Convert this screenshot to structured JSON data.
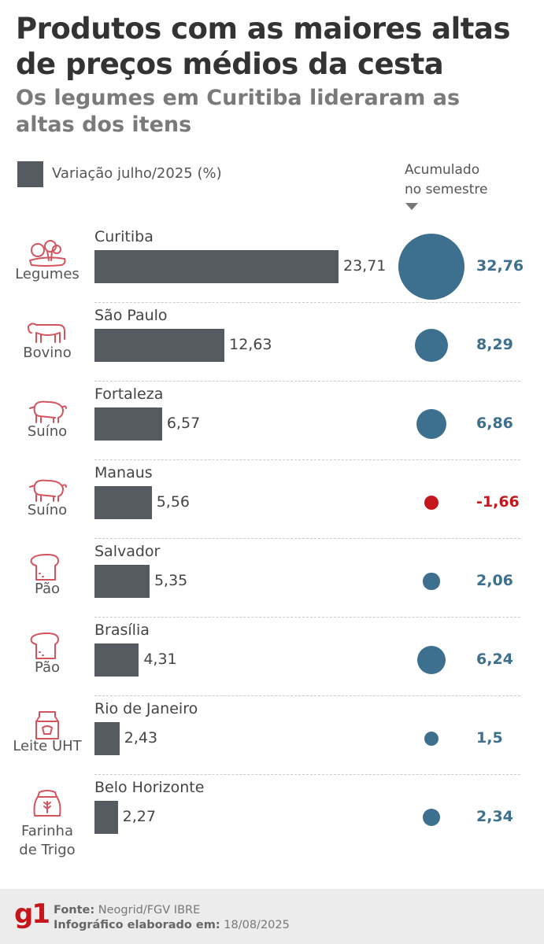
{
  "chart_data": {
    "type": "bar",
    "title": "Produtos com as maiores altas de preços médios da cesta",
    "subtitle": "Os legumes em Curitiba lideraram as altas dos itens",
    "legend": "Variação julho/2025 (%)",
    "accum_label": "Acumulado no semestre",
    "accum_label_lines": [
      "Acumulado",
      "no semestre"
    ],
    "rows": [
      {
        "category": "Legumes",
        "category_lines": [
          "Legumes"
        ],
        "icon": "vegetables-icon",
        "city": "Curitiba",
        "month": "23,71",
        "month_value": 23.71,
        "accum": "32,76",
        "accum_value": 32.76
      },
      {
        "category": "Bovino",
        "category_lines": [
          "Bovino"
        ],
        "icon": "cow-icon",
        "city": "São Paulo",
        "month": "12,63",
        "month_value": 12.63,
        "accum": "8,29",
        "accum_value": 8.29
      },
      {
        "category": "Suíno",
        "category_lines": [
          "Suíno"
        ],
        "icon": "pig-icon",
        "city": "Fortaleza",
        "month": "6,57",
        "month_value": 6.57,
        "accum": "6,86",
        "accum_value": 6.86
      },
      {
        "category": "Suíno",
        "category_lines": [
          "Suíno"
        ],
        "icon": "pig-icon",
        "city": "Manaus",
        "month": "5,56",
        "month_value": 5.56,
        "accum": "-1,66",
        "accum_value": -1.66
      },
      {
        "category": "Pão",
        "category_lines": [
          "Pão"
        ],
        "icon": "bread-icon",
        "city": "Salvador",
        "month": "5,35",
        "month_value": 5.35,
        "accum": "2,06",
        "accum_value": 2.06
      },
      {
        "category": "Pão",
        "category_lines": [
          "Pão"
        ],
        "icon": "bread-icon",
        "city": "Brasília",
        "month": "4,31",
        "month_value": 4.31,
        "accum": "6,24",
        "accum_value": 6.24
      },
      {
        "category": "Leite UHT",
        "category_lines": [
          "Leite UHT"
        ],
        "icon": "milk-carton-icon",
        "city": "Rio de Janeiro",
        "month": "2,43",
        "month_value": 2.43,
        "accum": "1,5",
        "accum_value": 1.5
      },
      {
        "category": "Farinha de Trigo",
        "category_lines": [
          "Farinha",
          "de Trigo"
        ],
        "icon": "flour-bag-icon",
        "city": "Belo Horizonte",
        "month": "2,27",
        "month_value": 2.27,
        "accum": "2,34",
        "accum_value": 2.34
      }
    ]
  },
  "colors": {
    "bar": "#555b61",
    "positive": "#3d6f8e",
    "negative": "#c4161c",
    "icon": "#d4545e"
  },
  "footer": {
    "logo": "g1",
    "source_label": "Fonte:",
    "source": "Neogrid/FGV IBRE",
    "date_label": "Infográfico elaborado em:",
    "date": "18/08/2025"
  }
}
